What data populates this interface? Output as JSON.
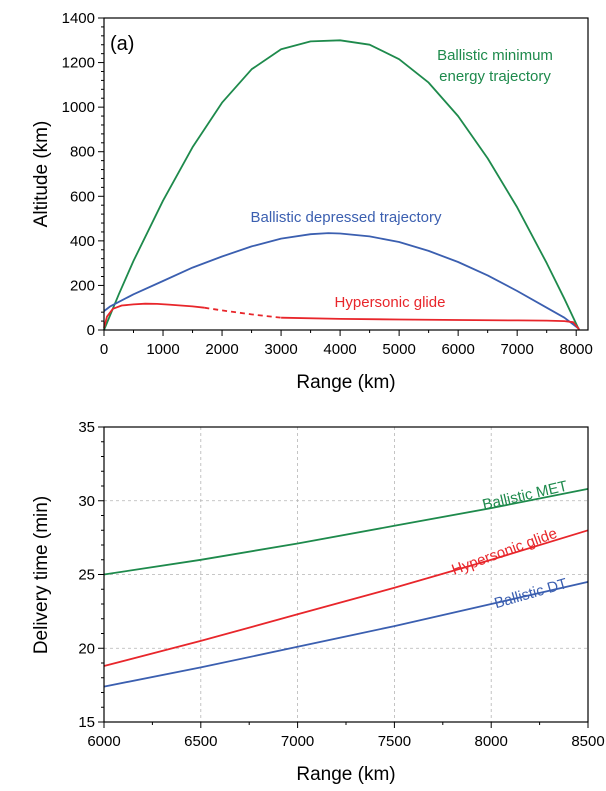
{
  "chart_data": [
    {
      "type": "line",
      "panel_label": "(a)",
      "xlabel": "Range (km)",
      "ylabel": "Altitude (km)",
      "xlim": [
        0,
        8200
      ],
      "ylim": [
        0,
        1400
      ],
      "xticks": [
        0,
        1000,
        2000,
        3000,
        4000,
        5000,
        6000,
        7000,
        8000
      ],
      "yticks": [
        0,
        200,
        400,
        600,
        800,
        1000,
        1200,
        1400
      ],
      "grid": false,
      "series": [
        {
          "name": "Ballistic minimum energy trajectory",
          "label_lines": [
            "Ballistic minimum",
            "energy trajectory"
          ],
          "color": "#1e8a4c",
          "x": [
            0,
            250,
            500,
            1000,
            1500,
            2000,
            2500,
            3000,
            3500,
            4000,
            4500,
            5000,
            5500,
            6000,
            6500,
            7000,
            7500,
            7800,
            8050
          ],
          "y": [
            0,
            160,
            310,
            580,
            820,
            1020,
            1170,
            1260,
            1295,
            1300,
            1280,
            1215,
            1110,
            960,
            770,
            550,
            300,
            140,
            0
          ]
        },
        {
          "name": "Ballistic depressed trajectory",
          "label_lines": [
            "Ballistic depressed trajectory"
          ],
          "color": "#3b5fb0",
          "x": [
            0,
            100,
            500,
            1000,
            1500,
            2000,
            2500,
            3000,
            3500,
            3800,
            4000,
            4500,
            5000,
            5500,
            6000,
            6500,
            7000,
            7500,
            7800,
            8050
          ],
          "y": [
            85,
            105,
            160,
            220,
            280,
            330,
            375,
            410,
            430,
            435,
            433,
            420,
            395,
            355,
            305,
            245,
            175,
            100,
            55,
            5
          ]
        },
        {
          "name": "Hypersonic glide",
          "label_lines": [
            "Hypersonic glide"
          ],
          "color": "#e8262b",
          "x": [
            0,
            50,
            150,
            300,
            500,
            700,
            900,
            1100,
            1300,
            1500,
            1700
          ],
          "y": [
            10,
            60,
            95,
            110,
            115,
            118,
            117,
            114,
            110,
            106,
            100
          ],
          "dashed": {
            "x": [
              1700,
              2000,
              2500,
              3000
            ],
            "y": [
              100,
              88,
              70,
              55
            ]
          },
          "tail": {
            "x": [
              3000,
              4000,
              5000,
              6000,
              7000,
              7500,
              7800,
              7950,
              8050
            ],
            "y": [
              55,
              50,
              47,
              45,
              43,
              42,
              40,
              35,
              3
            ]
          }
        }
      ]
    },
    {
      "type": "line",
      "xlabel": "Range (km)",
      "ylabel": "Delivery time (min)",
      "xlim": [
        6000,
        8500
      ],
      "ylim": [
        15,
        35
      ],
      "xticks": [
        6000,
        6500,
        7000,
        7500,
        8000,
        8500
      ],
      "yticks": [
        15,
        20,
        25,
        30,
        35
      ],
      "grid": true,
      "series": [
        {
          "name": "Ballistic MET",
          "color": "#1e8a4c",
          "x": [
            6000,
            6500,
            7000,
            7500,
            8000,
            8500
          ],
          "y": [
            25.0,
            26.0,
            27.1,
            28.3,
            29.5,
            30.8
          ]
        },
        {
          "name": "Hypersonic glide",
          "color": "#e8262b",
          "x": [
            6000,
            6500,
            7000,
            7500,
            8000,
            8500
          ],
          "y": [
            18.8,
            20.5,
            22.3,
            24.1,
            26.0,
            28.0
          ]
        },
        {
          "name": "Ballistic DT",
          "color": "#3b5fb0",
          "x": [
            6000,
            6500,
            7000,
            7500,
            8000,
            8500
          ],
          "y": [
            17.4,
            18.7,
            20.1,
            21.5,
            23.0,
            24.5
          ]
        }
      ]
    }
  ]
}
